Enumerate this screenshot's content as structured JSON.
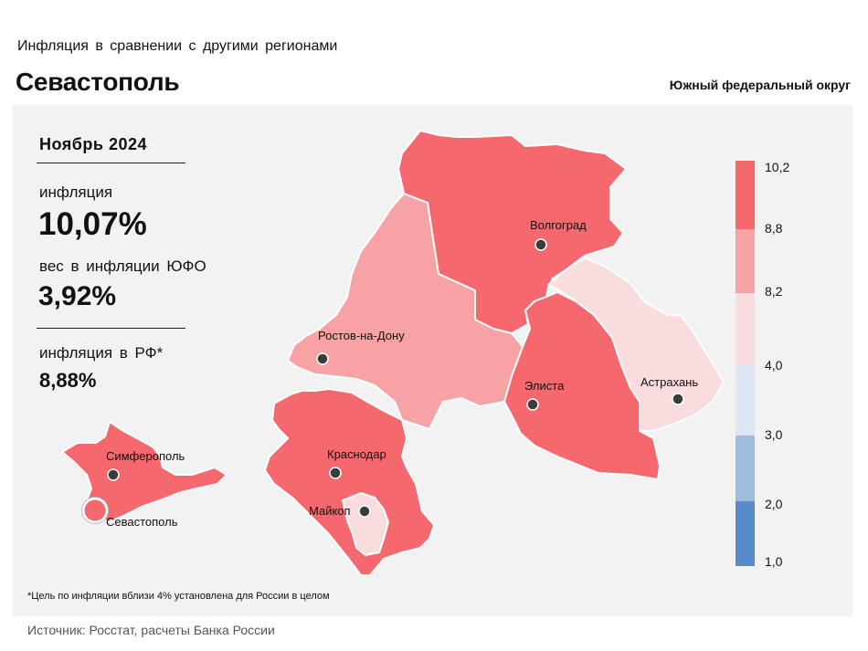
{
  "header": {
    "subtitle": "Инфляция в сравнении с другими регионами",
    "title": "Севастополь",
    "district": "Южный федеральный округ"
  },
  "stats": {
    "month": "Ноябрь 2024",
    "inflation_label": "инфляция",
    "inflation_value": "10,07%",
    "weight_label": "вес в инфляции ЮФО",
    "weight_value": "3,92%",
    "rf_label": "инфляция в РФ*",
    "rf_value": "8,88%"
  },
  "map": {
    "regions": [
      {
        "name": "Волгоград",
        "color": "#f4686e"
      },
      {
        "name": "Ростов-на-Дону",
        "color": "#f7a3a5"
      },
      {
        "name": "Элиста",
        "color": "#f4686e"
      },
      {
        "name": "Астрахань",
        "color": "#f9dcde"
      },
      {
        "name": "Краснодар",
        "color": "#f4686e"
      },
      {
        "name": "Майкоп",
        "color": "#f9dcde"
      },
      {
        "name": "Симферополь",
        "color": "#f4686e"
      }
    ],
    "highlight": {
      "name": "Севастополь",
      "color": "#f4686e"
    }
  },
  "legend": {
    "ticks": [
      "10,2",
      "8,8",
      "8,2",
      "4,0",
      "3,0",
      "2,0",
      "1,0"
    ],
    "colors": [
      "#f4686e",
      "#f7a3a5",
      "#f9dcde",
      "#dfe6f3",
      "#a0bcdf",
      "#5a8ac8"
    ]
  },
  "footnote": "*Цель по инфляции вблизи 4% установлена для России в целом",
  "source": "Источник: Росстат, расчеты Банка России"
}
